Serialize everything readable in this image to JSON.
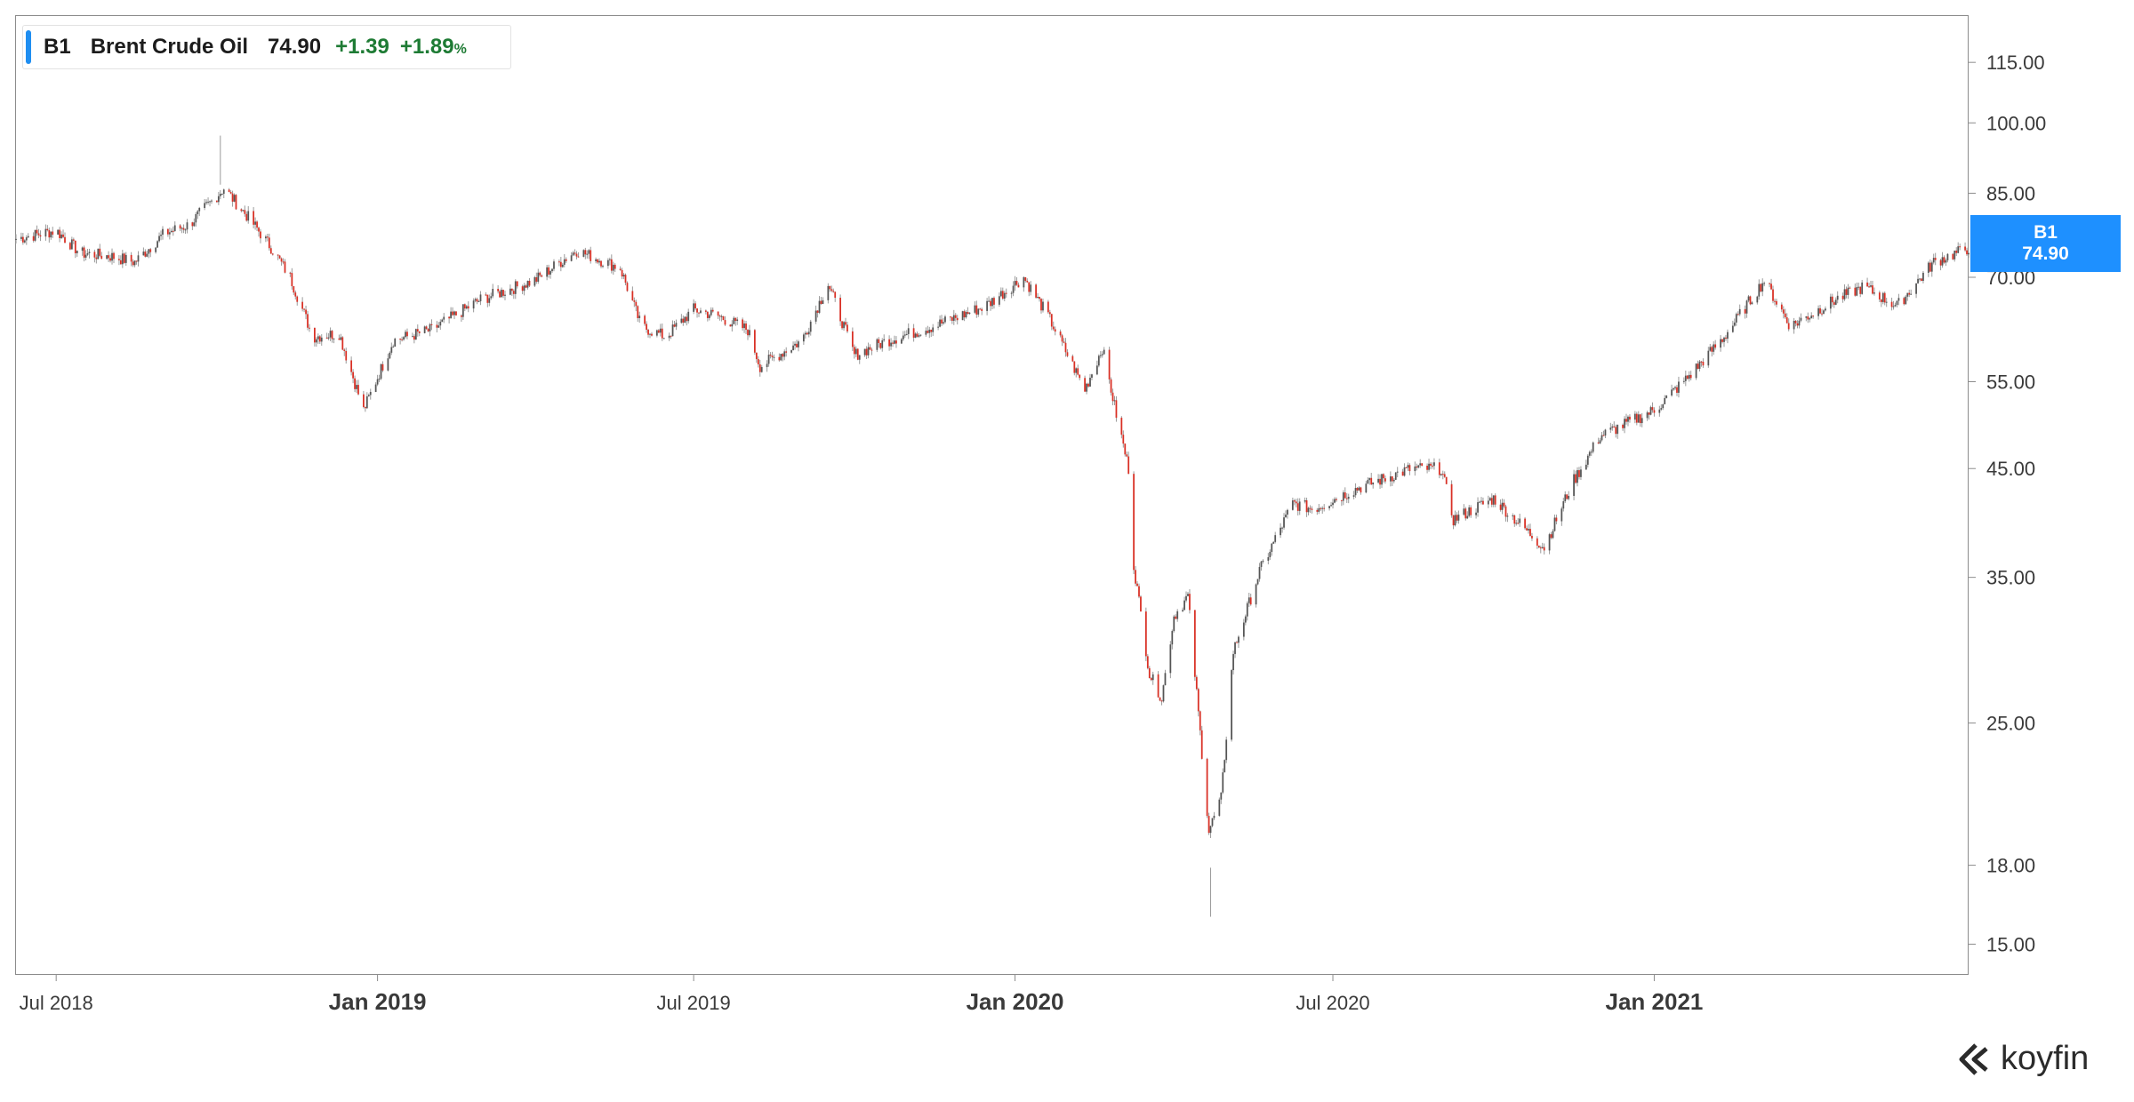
{
  "legend": {
    "symbol": "B1",
    "name": "Brent Crude Oil",
    "price": "74.90",
    "change": "+1.39",
    "change_pct": "+1.89",
    "pct_sign": "%",
    "change_color": "#1e7b34"
  },
  "price_tag": {
    "symbol": "B1",
    "value": "74.90",
    "color": "#1e90ff"
  },
  "logo": {
    "text": "koyfin",
    "icon": "koyfin-logo-icon"
  },
  "colors": {
    "up": "#555555",
    "down": "#d93025",
    "wick": "#9a9a9a"
  },
  "chart_data": {
    "type": "candlestick",
    "title": "",
    "series_name": "B1 Brent Crude Oil",
    "y_scale": "log",
    "ylim": [
      14,
      128
    ],
    "y_ticks": [
      15,
      18,
      25,
      35,
      45,
      55,
      70,
      85,
      100,
      115
    ],
    "y_tick_labels": [
      "15.00",
      "18.00",
      "25.00",
      "35.00",
      "45.00",
      "55.00",
      "70.00",
      "85.00",
      "100.00",
      "115.00"
    ],
    "x_range": [
      "2018-06-08",
      "2021-06-30"
    ],
    "x_ticks": [
      {
        "date": "2018-07-01",
        "label": "Jul 2018",
        "major": false
      },
      {
        "date": "2019-01-01",
        "label": "Jan 2019",
        "major": true
      },
      {
        "date": "2019-07-01",
        "label": "Jul 2019",
        "major": false
      },
      {
        "date": "2020-01-01",
        "label": "Jan 2020",
        "major": true
      },
      {
        "date": "2020-07-01",
        "label": "Jul 2020",
        "major": false
      },
      {
        "date": "2021-01-01",
        "label": "Jan 2021",
        "major": true
      }
    ],
    "last_value": 74.9,
    "close_series": [
      [
        "2018-06-08",
        76.5
      ],
      [
        "2018-07-01",
        78.0
      ],
      [
        "2018-07-15",
        74.0
      ],
      [
        "2018-08-01",
        73.5
      ],
      [
        "2018-08-15",
        72.5
      ],
      [
        "2018-09-01",
        77.5
      ],
      [
        "2018-09-15",
        79.0
      ],
      [
        "2018-10-01",
        84.5
      ],
      [
        "2018-10-05",
        86.0
      ],
      [
        "2018-10-20",
        80.0
      ],
      [
        "2018-11-01",
        75.0
      ],
      [
        "2018-11-12",
        70.0
      ],
      [
        "2018-11-25",
        61.0
      ],
      [
        "2018-12-10",
        61.5
      ],
      [
        "2018-12-24",
        51.5
      ],
      [
        "2019-01-10",
        60.5
      ],
      [
        "2019-02-01",
        62.0
      ],
      [
        "2019-03-01",
        66.5
      ],
      [
        "2019-04-01",
        69.5
      ],
      [
        "2019-04-25",
        74.5
      ],
      [
        "2019-05-20",
        71.5
      ],
      [
        "2019-06-01",
        62.5
      ],
      [
        "2019-06-15",
        61.0
      ],
      [
        "2019-07-01",
        65.0
      ],
      [
        "2019-07-15",
        64.0
      ],
      [
        "2019-08-01",
        62.0
      ],
      [
        "2019-08-08",
        57.0
      ],
      [
        "2019-09-01",
        60.5
      ],
      [
        "2019-09-16",
        69.0
      ],
      [
        "2019-10-01",
        58.5
      ],
      [
        "2019-10-20",
        60.5
      ],
      [
        "2019-11-15",
        62.5
      ],
      [
        "2019-12-15",
        65.5
      ],
      [
        "2020-01-06",
        70.0
      ],
      [
        "2020-01-20",
        64.0
      ],
      [
        "2020-02-10",
        54.0
      ],
      [
        "2020-02-20",
        59.5
      ],
      [
        "2020-02-28",
        51.0
      ],
      [
        "2020-03-06",
        45.0
      ],
      [
        "2020-03-09",
        36.0
      ],
      [
        "2020-03-18",
        28.0
      ],
      [
        "2020-03-25",
        26.5
      ],
      [
        "2020-04-01",
        32.0
      ],
      [
        "2020-04-09",
        33.5
      ],
      [
        "2020-04-21",
        19.5
      ],
      [
        "2020-04-28",
        21.0
      ],
      [
        "2020-05-05",
        29.5
      ],
      [
        "2020-05-20",
        35.5
      ],
      [
        "2020-06-08",
        41.5
      ],
      [
        "2020-06-20",
        41.0
      ],
      [
        "2020-07-15",
        43.0
      ],
      [
        "2020-08-15",
        45.0
      ],
      [
        "2020-09-01",
        45.0
      ],
      [
        "2020-09-08",
        40.0
      ],
      [
        "2020-10-01",
        42.0
      ],
      [
        "2020-10-30",
        37.5
      ],
      [
        "2020-11-15",
        43.5
      ],
      [
        "2020-12-01",
        48.5
      ],
      [
        "2021-01-01",
        51.5
      ],
      [
        "2021-01-20",
        55.5
      ],
      [
        "2021-02-10",
        61.0
      ],
      [
        "2021-03-05",
        69.5
      ],
      [
        "2021-03-20",
        62.5
      ],
      [
        "2021-04-15",
        66.5
      ],
      [
        "2021-05-01",
        68.5
      ],
      [
        "2021-05-20",
        65.5
      ],
      [
        "2021-06-10",
        72.5
      ],
      [
        "2021-06-30",
        74.9
      ]
    ],
    "notable_extremes": [
      [
        "2020-04-22",
        15.98
      ],
      [
        "2018-10-03",
        86.7
      ]
    ]
  }
}
